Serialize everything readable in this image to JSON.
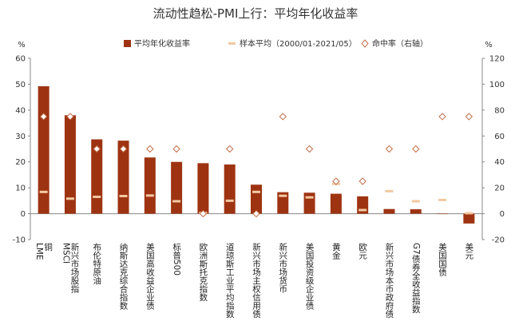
{
  "chart_data": {
    "type": "bar",
    "title": "流动性趋松-PMI上行：平均年化收益率",
    "left_unit": "%",
    "right_unit": "%",
    "ylim_left": [
      -10,
      60
    ],
    "ylim_right": [
      -20,
      120
    ],
    "yticks_left": [
      -10,
      0,
      10,
      20,
      30,
      40,
      50,
      60
    ],
    "yticks_right": [
      -20,
      0,
      20,
      40,
      60,
      80,
      100,
      120
    ],
    "categories": [
      "LME铜",
      "MSCI新兴市场股指",
      "布伦特原油",
      "纳斯达克综合指数",
      "美国高收益企业债",
      "标普500",
      "欧洲斯托克指数",
      "道琼斯工业平均指数",
      "新兴市场主权信用债",
      "新兴市场货币",
      "美国投资级企业债",
      "黄金",
      "欧元",
      "新兴市场本币政府债",
      "G7债券全收益指数",
      "美国国债",
      "美元"
    ],
    "category_lines": [
      [
        "LME",
        "铜"
      ],
      [
        "MSCI",
        "新兴市场股指"
      ],
      [
        "布伦特原油"
      ],
      [
        "纳斯达克综合指数"
      ],
      [
        "美国高收益企业债"
      ],
      [
        "标普500"
      ],
      [
        "欧洲斯托克指数"
      ],
      [
        "道琼斯工业平均指数"
      ],
      [
        "新兴市场主权信用债"
      ],
      [
        "新兴市场货币"
      ],
      [
        "美国投资级企业债"
      ],
      [
        "黄金"
      ],
      [
        "欧元"
      ],
      [
        "新兴市场本币政府债"
      ],
      [
        "G7债券全收益指数"
      ],
      [
        "美国国债"
      ],
      [
        "美元"
      ]
    ],
    "series": [
      {
        "name": "平均年化收益率",
        "type": "bar",
        "axis": "left",
        "color": "#9e3312",
        "values": [
          49.2,
          38.0,
          28.7,
          28.2,
          21.7,
          20.0,
          19.5,
          19.0,
          11.2,
          8.3,
          8.1,
          7.7,
          6.7,
          1.8,
          1.7,
          0.0,
          -3.8
        ]
      },
      {
        "name": "样本平均（2000/01-2021/05）",
        "type": "dash",
        "axis": "left",
        "color": "#f3c9a0",
        "values": [
          8.4,
          5.8,
          6.5,
          6.8,
          7.0,
          4.8,
          0.3,
          5.0,
          8.4,
          6.9,
          6.3,
          11.5,
          1.4,
          8.7,
          4.8,
          5.3,
          0.2
        ]
      },
      {
        "name": "命中率（右轴）",
        "type": "diamond",
        "axis": "right",
        "color": "#c0704a",
        "values": [
          75,
          75,
          50,
          50,
          50,
          50,
          0,
          50,
          0,
          75,
          50,
          25,
          25,
          50,
          50,
          75,
          75
        ]
      }
    ]
  }
}
